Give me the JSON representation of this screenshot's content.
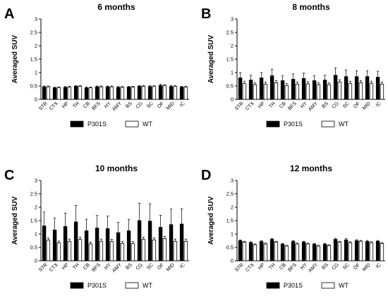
{
  "chart_data": [
    {
      "panel": "A",
      "title": "6 months",
      "type": "bar",
      "ylabel": "Averaged SUV",
      "ylim": [
        0,
        3.0
      ],
      "yticks": [
        "0",
        "0.5",
        "1",
        "1.5",
        "2",
        "2.5",
        "3"
      ],
      "categories": [
        "STR",
        "CTX",
        "HP",
        "TH",
        "CB",
        "BFS",
        "HY",
        "AMY",
        "BS",
        "CG",
        "SC",
        "OF",
        "MID",
        "IC"
      ],
      "series": [
        {
          "name": "P301S",
          "color": "#000000",
          "values": [
            0.47,
            0.43,
            0.45,
            0.49,
            0.43,
            0.47,
            0.47,
            0.45,
            0.46,
            0.49,
            0.48,
            0.52,
            0.48,
            0.46
          ],
          "errors": [
            0.03,
            0.03,
            0.03,
            0.03,
            0.03,
            0.03,
            0.03,
            0.03,
            0.03,
            0.03,
            0.03,
            0.04,
            0.03,
            0.03
          ]
        },
        {
          "name": "WT",
          "color": "#ffffff",
          "values": [
            0.47,
            0.44,
            0.46,
            0.49,
            0.43,
            0.47,
            0.47,
            0.45,
            0.46,
            0.49,
            0.48,
            0.52,
            0.48,
            0.46
          ],
          "errors": [
            0.03,
            0.03,
            0.03,
            0.03,
            0.03,
            0.03,
            0.03,
            0.03,
            0.03,
            0.03,
            0.03,
            0.03,
            0.03,
            0.03
          ]
        }
      ],
      "legend": "bottom"
    },
    {
      "panel": "B",
      "title": "8 months",
      "type": "bar",
      "ylabel": "Averaged SUV",
      "ylim": [
        0,
        3.0
      ],
      "yticks": [
        "0",
        "0.5",
        "1",
        "1.5",
        "2",
        "2.5",
        "3"
      ],
      "categories": [
        "STR",
        "CTX",
        "HP",
        "TH",
        "CB",
        "BFS",
        "HY",
        "AMY",
        "BS",
        "CG",
        "SC",
        "OF",
        "MID",
        "IC"
      ],
      "series": [
        {
          "name": "P301S",
          "color": "#000000",
          "values": [
            0.8,
            0.72,
            0.8,
            0.88,
            0.7,
            0.75,
            0.78,
            0.7,
            0.72,
            0.9,
            0.85,
            0.85,
            0.85,
            0.83
          ],
          "errors": [
            0.2,
            0.18,
            0.2,
            0.25,
            0.18,
            0.2,
            0.2,
            0.18,
            0.18,
            0.27,
            0.25,
            0.22,
            0.22,
            0.22
          ]
        },
        {
          "name": "WT",
          "color": "#ffffff",
          "values": [
            0.6,
            0.55,
            0.57,
            0.62,
            0.52,
            0.57,
            0.58,
            0.55,
            0.55,
            0.65,
            0.6,
            0.62,
            0.6,
            0.57
          ],
          "errors": [
            0.08,
            0.07,
            0.08,
            0.08,
            0.07,
            0.08,
            0.08,
            0.07,
            0.07,
            0.08,
            0.08,
            0.08,
            0.08,
            0.08
          ]
        }
      ],
      "legend": "bottom"
    },
    {
      "panel": "C",
      "title": "10 months",
      "type": "bar",
      "ylabel": "Averaged SUV",
      "ylim": [
        0,
        3.0
      ],
      "yticks": [
        "0",
        "0.5",
        "1",
        "1.5",
        "2",
        "2.5",
        "3"
      ],
      "categories": [
        "STR",
        "CTX",
        "HP",
        "TH",
        "CB",
        "BFS",
        "HY",
        "AMY",
        "BS",
        "CG",
        "SC",
        "OF",
        "MID",
        "IC"
      ],
      "series": [
        {
          "name": "P301S",
          "color": "#000000",
          "values": [
            1.3,
            1.15,
            1.28,
            1.45,
            1.12,
            1.22,
            1.2,
            1.05,
            1.12,
            1.5,
            1.48,
            1.25,
            1.35,
            1.37
          ],
          "errors": [
            0.52,
            0.45,
            0.5,
            0.62,
            0.43,
            0.47,
            0.47,
            0.38,
            0.43,
            0.65,
            0.65,
            0.45,
            0.58,
            0.57
          ]
        },
        {
          "name": "WT",
          "color": "#ffffff",
          "values": [
            0.77,
            0.67,
            0.73,
            0.8,
            0.63,
            0.73,
            0.72,
            0.65,
            0.65,
            0.8,
            0.78,
            0.83,
            0.73,
            0.73
          ],
          "errors": [
            0.08,
            0.07,
            0.08,
            0.08,
            0.07,
            0.08,
            0.08,
            0.07,
            0.07,
            0.08,
            0.08,
            0.08,
            0.08,
            0.08
          ]
        }
      ],
      "legend": "bottom"
    },
    {
      "panel": "D",
      "title": "12 months",
      "type": "bar",
      "ylabel": "Averaged SUV",
      "ylim": [
        0,
        3.0
      ],
      "yticks": [
        "0",
        "0.5",
        "1",
        "1.5",
        "2",
        "2.5",
        "3"
      ],
      "categories": [
        "STR",
        "CTX",
        "HP",
        "TH",
        "CB",
        "BFS",
        "HY",
        "AMY",
        "BS",
        "CG",
        "SC",
        "OF",
        "MID",
        "IC"
      ],
      "series": [
        {
          "name": "P301S",
          "color": "#000000",
          "values": [
            0.75,
            0.68,
            0.72,
            0.8,
            0.62,
            0.72,
            0.7,
            0.62,
            0.62,
            0.8,
            0.78,
            0.75,
            0.72,
            0.73
          ],
          "errors": [
            0.03,
            0.03,
            0.03,
            0.04,
            0.03,
            0.03,
            0.03,
            0.03,
            0.03,
            0.04,
            0.05,
            0.04,
            0.04,
            0.03
          ]
        },
        {
          "name": "WT",
          "color": "#ffffff",
          "values": [
            0.7,
            0.6,
            0.63,
            0.7,
            0.55,
            0.63,
            0.63,
            0.55,
            0.57,
            0.7,
            0.68,
            0.73,
            0.68,
            0.65
          ],
          "errors": [
            0.03,
            0.03,
            0.03,
            0.03,
            0.03,
            0.03,
            0.03,
            0.03,
            0.03,
            0.03,
            0.03,
            0.03,
            0.03,
            0.03
          ]
        }
      ],
      "legend": "bottom"
    }
  ]
}
